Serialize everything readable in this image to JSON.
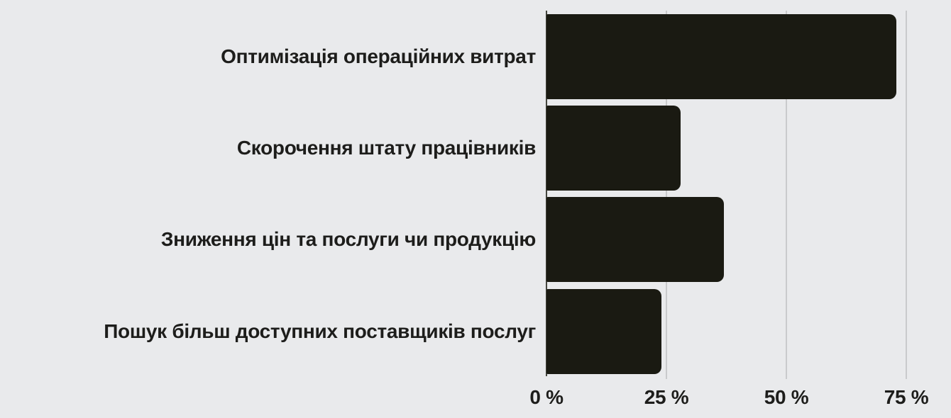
{
  "chart_data": {
    "type": "bar",
    "orientation": "horizontal",
    "title": "",
    "xlabel": "",
    "ylabel": "",
    "categories": [
      "Оптимізація операційних витрат",
      "Скорочення штату працівників",
      "Зниження цін та послуги чи продукцію",
      "Пошук більш доступних поставщиків послуг"
    ],
    "values": [
      73,
      28,
      37,
      24
    ],
    "unit": "%",
    "x_ticks": [
      {
        "value": 0,
        "label": "0 %"
      },
      {
        "value": 25,
        "label": "25 %"
      },
      {
        "value": 50,
        "label": "50 %"
      },
      {
        "value": 75,
        "label": "75 %"
      }
    ],
    "xlim": [
      0,
      84
    ],
    "grid": true,
    "legend": false,
    "colors": {
      "bar": "#1a1a12",
      "background": "#e9eaec",
      "gridline": "#c9cacc",
      "axis_line": "#45463f",
      "text": "#1d1d1b"
    }
  }
}
